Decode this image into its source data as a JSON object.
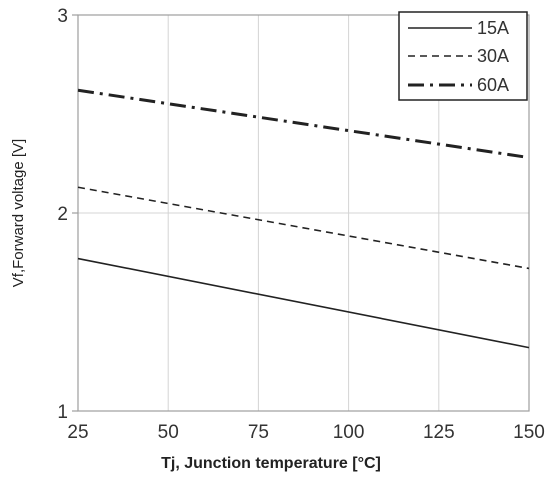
{
  "chart_data": {
    "type": "line",
    "title": "",
    "xlabel": "Tj, Junction temperature [°C]",
    "ylabel": "Vf,Forward voltage [V]",
    "xlim": [
      25,
      150
    ],
    "ylim": [
      1,
      3
    ],
    "xticks": [
      "25",
      "50",
      "75",
      "100",
      "125",
      "150"
    ],
    "yticks": [
      "1",
      "2",
      "3"
    ],
    "grid": true,
    "legend_position": "top-right",
    "series": [
      {
        "name": "15A",
        "style": "solid",
        "x": [
          25,
          150
        ],
        "y": [
          1.77,
          1.32
        ]
      },
      {
        "name": "30A",
        "style": "dashed",
        "x": [
          25,
          150
        ],
        "y": [
          2.13,
          1.72
        ]
      },
      {
        "name": "60A",
        "style": "dash-dot",
        "x": [
          25,
          150
        ],
        "y": [
          2.62,
          2.28
        ]
      }
    ]
  }
}
